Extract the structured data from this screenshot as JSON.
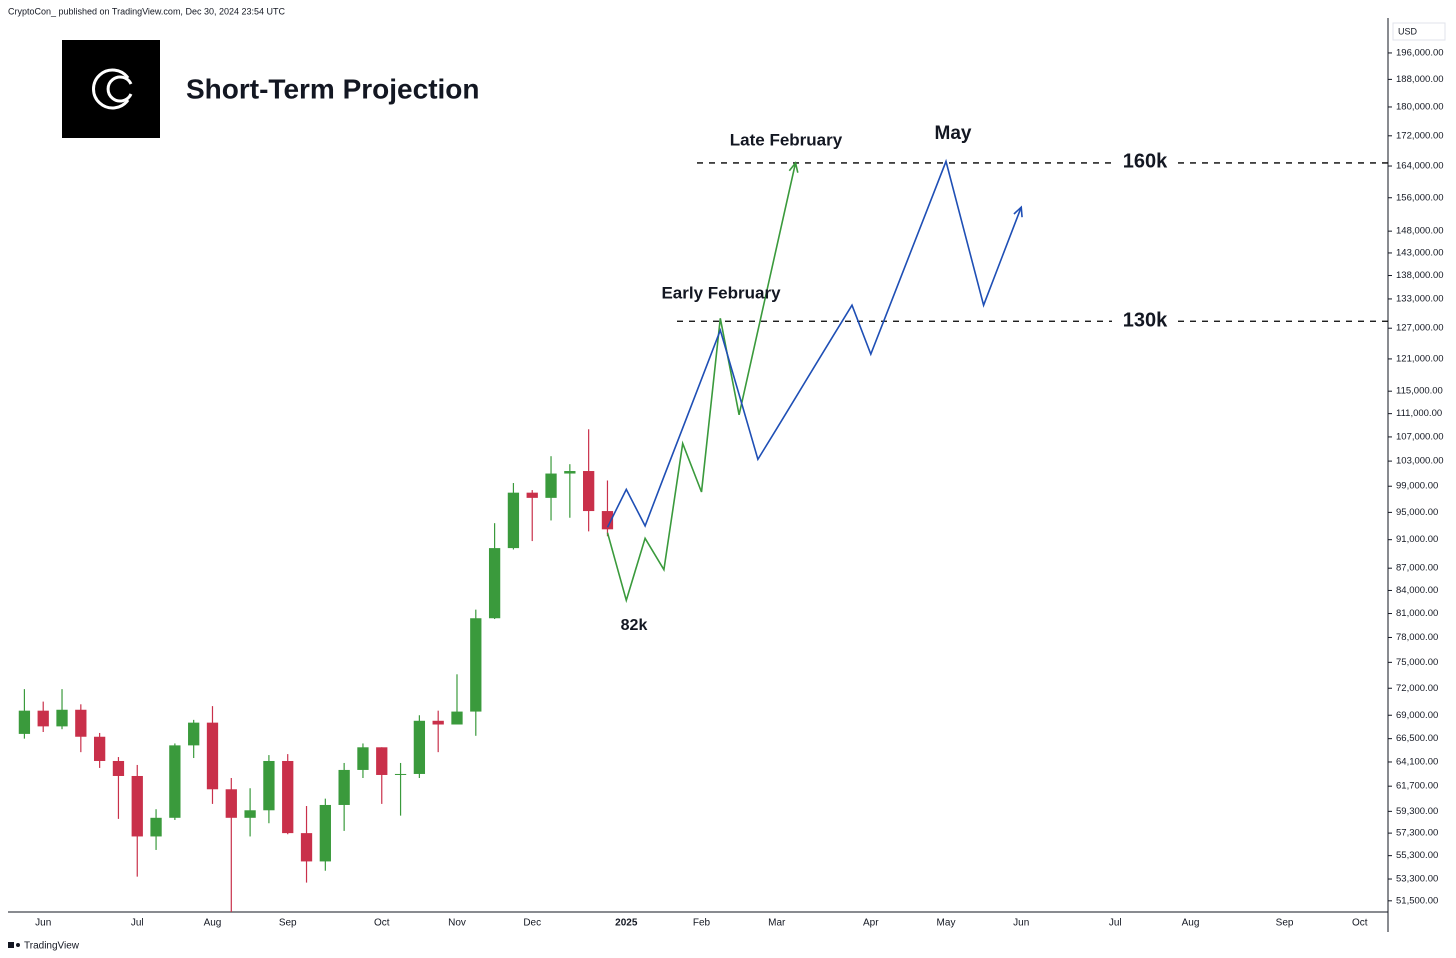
{
  "chart_data": {
    "type": "candlestick",
    "title": "Short-Term Projection",
    "source_note": "CryptoCon_ published on TradingView.com, Dec 30, 2024 23:54 UTC",
    "brand": "TradingView",
    "currency": "USD",
    "log_scale": true,
    "up_color": "#3a9a3c",
    "down_color": "#c9304a",
    "categories": [
      null,
      "Jun",
      null,
      null,
      null,
      null,
      "Jul",
      null,
      null,
      null,
      "Aug",
      null,
      null,
      null,
      "Sep",
      null,
      null,
      null,
      null,
      "Oct",
      null,
      null,
      null,
      "Nov",
      null,
      null,
      null,
      "Dec",
      null,
      null,
      null,
      null,
      "2025",
      null,
      null,
      null,
      "Feb",
      null,
      null,
      null,
      "Mar",
      null,
      null,
      null,
      null,
      "Apr",
      null,
      null,
      null,
      "May",
      null,
      null,
      null,
      "Jun",
      null,
      null,
      null,
      null,
      "Jul",
      null,
      null,
      null,
      "Aug",
      null,
      null,
      null,
      null,
      "Sep",
      null,
      null,
      null,
      "Oct",
      null
    ],
    "open": [
      67000,
      69500,
      67800,
      69600,
      66700,
      64200,
      62700,
      57000,
      58700,
      65800,
      68200,
      61400,
      58700,
      59400,
      64200,
      57300,
      54800,
      59900,
      63300,
      65600,
      62800,
      62900,
      68400,
      68000,
      69400,
      80400,
      89800,
      98000,
      97200,
      101000,
      101400,
      95200,
      null,
      null,
      null,
      null,
      null,
      null,
      null,
      null,
      null,
      null,
      null,
      null,
      null,
      null,
      null,
      null,
      null,
      null,
      null,
      null,
      null,
      null,
      null,
      null,
      null,
      null,
      null,
      null,
      null,
      null,
      null,
      null,
      null,
      null,
      null,
      null,
      null,
      null,
      null,
      null,
      null
    ],
    "high": [
      71900,
      70500,
      71900,
      70200,
      67100,
      64600,
      63800,
      59500,
      66000,
      68500,
      70000,
      62500,
      61500,
      64800,
      64900,
      59800,
      60500,
      64000,
      66000,
      65600,
      64000,
      69000,
      69500,
      73600,
      81500,
      93400,
      99500,
      98400,
      103800,
      102500,
      108300,
      99900,
      null,
      null,
      null,
      null,
      null,
      null,
      null,
      null,
      null,
      null,
      null,
      null,
      null,
      null,
      null,
      null,
      null,
      null,
      null,
      null,
      null,
      null,
      null,
      null,
      null,
      null,
      null,
      null,
      null,
      null,
      null,
      null,
      null,
      null,
      null,
      null,
      null,
      null,
      null,
      null,
      null
    ],
    "low": [
      66500,
      67200,
      67500,
      65100,
      63500,
      58600,
      53500,
      55800,
      58500,
      64500,
      60000,
      50600,
      57000,
      58200,
      57200,
      53000,
      54000,
      57500,
      62500,
      60000,
      58900,
      62500,
      65100,
      68000,
      66800,
      80300,
      89600,
      90800,
      93800,
      94200,
      92200,
      91500,
      null,
      null,
      null,
      null,
      null,
      null,
      null,
      null,
      null,
      null,
      null,
      null,
      null,
      null,
      null,
      null,
      null,
      null,
      null,
      null,
      null,
      null,
      null,
      null,
      null,
      null,
      null,
      null,
      null,
      null,
      null,
      null,
      null,
      null,
      null,
      null,
      null,
      null,
      null,
      null,
      null
    ],
    "close": [
      69500,
      67800,
      69600,
      66700,
      64200,
      62700,
      57000,
      58700,
      65800,
      68200,
      61400,
      58700,
      59400,
      64200,
      57300,
      54800,
      59900,
      63300,
      65600,
      62800,
      62900,
      68400,
      68000,
      69400,
      80400,
      89800,
      98000,
      97200,
      101000,
      101400,
      95200,
      92500,
      null,
      null,
      null,
      null,
      null,
      null,
      null,
      null,
      null,
      null,
      null,
      null,
      null,
      null,
      null,
      null,
      null,
      null,
      null,
      null,
      null,
      null,
      null,
      null,
      null,
      null,
      null,
      null,
      null,
      null,
      null,
      null,
      null,
      null,
      null,
      null,
      null,
      null,
      null,
      null,
      null
    ],
    "series": [
      {
        "color": "#3a9a3c",
        "values": [
          null,
          null,
          null,
          null,
          null,
          null,
          null,
          null,
          null,
          null,
          null,
          null,
          null,
          null,
          null,
          null,
          null,
          null,
          null,
          null,
          null,
          null,
          null,
          null,
          null,
          null,
          null,
          null,
          null,
          null,
          null,
          92000,
          82700,
          91200,
          86800,
          105900,
          98100,
          129000,
          110800,
          126500,
          144400,
          164800,
          null,
          null,
          null,
          null,
          null,
          null,
          null,
          null,
          null,
          null,
          null,
          null,
          null,
          null,
          null,
          null,
          null,
          null,
          null,
          null,
          null,
          null,
          null,
          null,
          null,
          null,
          null,
          null,
          null,
          null,
          null
        ]
      },
      {
        "color": "#1f4fb5",
        "values": [
          null,
          null,
          null,
          null,
          null,
          null,
          null,
          null,
          null,
          null,
          null,
          null,
          null,
          null,
          null,
          null,
          null,
          null,
          null,
          null,
          null,
          null,
          null,
          null,
          null,
          null,
          null,
          null,
          null,
          null,
          null,
          92800,
          98500,
          93000,
          100500,
          108500,
          117200,
          126600,
          114400,
          103300,
          108400,
          113800,
          119500,
          125500,
          131700,
          121900,
          131500,
          141900,
          153100,
          165200,
          147500,
          131700,
          142300,
          153700,
          null,
          null,
          null,
          null,
          null,
          null,
          null,
          null,
          null,
          null,
          null,
          null,
          null,
          null,
          null,
          null,
          null,
          null,
          null
        ]
      }
    ],
    "levels": [
      164800,
      128400
    ],
    "annotations": [
      "Late February",
      "May",
      "Early February",
      "160k",
      "130k",
      "82k"
    ],
    "ylim": [
      50600,
      207100
    ],
    "yticks": [
      {
        "value": 196000,
        "label": "196,000.00"
      },
      {
        "value": 188000,
        "label": "188,000.00"
      },
      {
        "value": 180000,
        "label": "180,000.00"
      },
      {
        "value": 172000,
        "label": "172,000.00"
      },
      {
        "value": 164000,
        "label": "164,000.00"
      },
      {
        "value": 156000,
        "label": "156,000.00"
      },
      {
        "value": 148000,
        "label": "148,000.00"
      },
      {
        "value": 143000,
        "label": "143,000.00"
      },
      {
        "value": 138000,
        "label": "138,000.00"
      },
      {
        "value": 133000,
        "label": "133,000.00"
      },
      {
        "value": 127000,
        "label": "127,000.00"
      },
      {
        "value": 121000,
        "label": "121,000.00"
      },
      {
        "value": 115000,
        "label": "115,000.00"
      },
      {
        "value": 111000,
        "label": "111,000.00"
      },
      {
        "value": 107000,
        "label": "107,000.00"
      },
      {
        "value": 103000,
        "label": "103,000.00"
      },
      {
        "value": 99000,
        "label": "99,000.00"
      },
      {
        "value": 95000,
        "label": "95,000.00"
      },
      {
        "value": 91000,
        "label": "91,000.00"
      },
      {
        "value": 87000,
        "label": "87,000.00"
      },
      {
        "value": 84000,
        "label": "84,000.00"
      },
      {
        "value": 81000,
        "label": "81,000.00"
      },
      {
        "value": 78000,
        "label": "78,000.00"
      },
      {
        "value": 75000,
        "label": "75,000.00"
      },
      {
        "value": 72000,
        "label": "72,000.00"
      },
      {
        "value": 69000,
        "label": "69,000.00"
      },
      {
        "value": 66500,
        "label": "66,500.00"
      },
      {
        "value": 64100,
        "label": "64,100.00"
      },
      {
        "value": 61700,
        "label": "61,700.00"
      },
      {
        "value": 59300,
        "label": "59,300.00"
      },
      {
        "value": 57300,
        "label": "57,300.00"
      },
      {
        "value": 55300,
        "label": "55,300.00"
      },
      {
        "value": 53300,
        "label": "53,300.00"
      },
      {
        "value": 51500,
        "label": "51,500.00"
      }
    ]
  }
}
